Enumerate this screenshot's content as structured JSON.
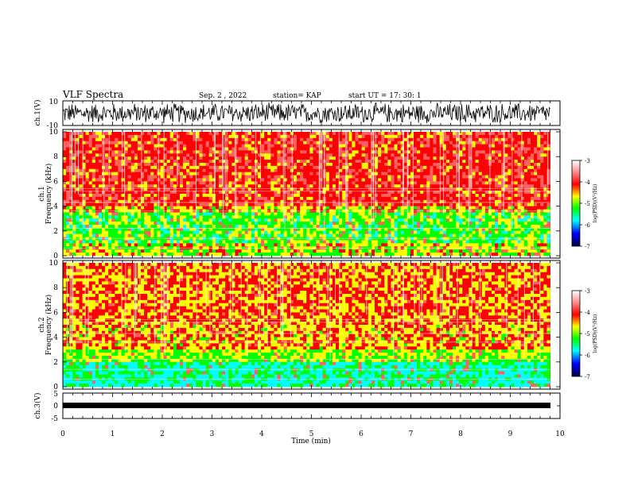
{
  "header": {
    "title": "VLF Spectra",
    "date": "Sep. 2 , 2022",
    "station": "station= KAP",
    "start_ut": "start UT = 17: 30: 1"
  },
  "chart_data": [
    {
      "type": "line",
      "title": "",
      "ylabel": "ch.1(V)",
      "ylim": [
        -10,
        10
      ],
      "yticks": [
        "10",
        "-10"
      ],
      "xlim": [
        0,
        10
      ],
      "description_of_series": "noisy waveform spanning ~0-9.8 min, amplitude mostly within -8..+8 V"
    },
    {
      "type": "heatmap",
      "ylabel": "ch.1\nFrequency (kHz)",
      "ylim": [
        0,
        10
      ],
      "yticks": [
        "0",
        "2",
        "4",
        "6",
        "8",
        "10"
      ],
      "xlim": [
        0,
        10
      ],
      "colorbar": {
        "label": "log(PSD)(V²/Hz)",
        "range": [
          -7,
          -3
        ],
        "ticks": [
          "-3",
          "-4",
          "-5",
          "-6",
          "-7"
        ]
      },
      "dominant_colors": {
        "0-4kHz": "mixed red/yellow/green",
        "4-10kHz": "red with white streaks"
      }
    },
    {
      "type": "heatmap",
      "ylabel": "ch.2\nFrequency (kHz)",
      "ylim": [
        0,
        10
      ],
      "yticks": [
        "0",
        "2",
        "4",
        "6",
        "8",
        "10"
      ],
      "xlim": [
        0,
        10
      ],
      "colorbar": {
        "label": "log(PSD)(V²/Hz)",
        "range": [
          -7,
          -3
        ],
        "ticks": [
          "-3",
          "-4",
          "-5",
          "-6",
          "-7"
        ]
      },
      "dominant_colors": {
        "0-2kHz": "green/yellow",
        "2-10kHz": "red/yellow with white streaks"
      }
    },
    {
      "type": "line",
      "ylabel": "ch.3(V)",
      "ylim": [
        -5,
        5
      ],
      "yticks": [
        "5",
        "0",
        "-5"
      ],
      "xlim": [
        0,
        10
      ],
      "xlabel": "Time (min)",
      "xticks": [
        "0",
        "1",
        "2",
        "3",
        "4",
        "5",
        "6",
        "7",
        "8",
        "9",
        "10"
      ],
      "description_of_series": "thick flat black band near -1 V over 0-9.8 min"
    }
  ],
  "colors": {
    "colorbar_top": "#ffffff",
    "high": "#ff0000",
    "mid": "#ffff00",
    "low": "#00ff00",
    "lower": "#00ffff",
    "lowest": "#0000ff"
  }
}
